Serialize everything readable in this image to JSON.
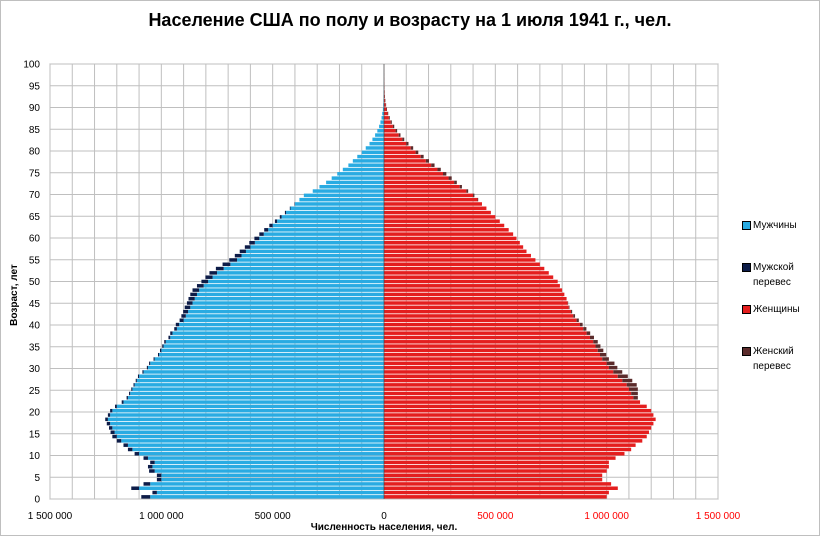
{
  "chart_data": {
    "type": "bar",
    "orientation": "horizontal",
    "title": "Население США по полу и возрасту на 1 июля 1941 г., чел.",
    "xlabel": "Численность  населения, чел.",
    "ylabel": "Возраст, лет",
    "xlim": [
      -1500000,
      1500000
    ],
    "ylim": [
      0,
      100
    ],
    "x_ticks": [
      {
        "value": -1500000,
        "label": "1 500 000"
      },
      {
        "value": -1000000,
        "label": "1 000 000"
      },
      {
        "value": -500000,
        "label": "500 000"
      },
      {
        "value": 0,
        "label": "0"
      },
      {
        "value": 500000,
        "label": "500 000"
      },
      {
        "value": 1000000,
        "label": "1 000 000"
      },
      {
        "value": 1500000,
        "label": "1 500 000"
      }
    ],
    "y_ticks": [
      "0",
      "5",
      "10",
      "15",
      "20",
      "25",
      "30",
      "35",
      "40",
      "45",
      "50",
      "55",
      "60",
      "65",
      "70",
      "75",
      "80",
      "85",
      "90",
      "95",
      "100"
    ],
    "grid": true,
    "legend_position": "right",
    "ages": [
      0,
      1,
      2,
      3,
      4,
      5,
      6,
      7,
      8,
      9,
      10,
      11,
      12,
      13,
      14,
      15,
      16,
      17,
      18,
      19,
      20,
      21,
      22,
      23,
      24,
      25,
      26,
      27,
      28,
      29,
      30,
      31,
      32,
      33,
      34,
      35,
      36,
      37,
      38,
      39,
      40,
      41,
      42,
      43,
      44,
      45,
      46,
      47,
      48,
      49,
      50,
      51,
      52,
      53,
      54,
      55,
      56,
      57,
      58,
      59,
      60,
      61,
      62,
      63,
      64,
      65,
      66,
      67,
      68,
      69,
      70,
      71,
      72,
      73,
      74,
      75,
      76,
      77,
      78,
      79,
      80,
      81,
      82,
      83,
      84,
      85,
      86,
      87,
      88,
      89,
      90,
      91,
      92,
      93,
      94,
      95,
      96,
      97,
      98,
      99,
      100
    ],
    "series": [
      {
        "name": "Мужчины",
        "color": "#29ABE2",
        "side": "left",
        "values": [
          1050000,
          1020000,
          1100000,
          1050000,
          1000000,
          1000000,
          1030000,
          1040000,
          1030000,
          1060000,
          1100000,
          1130000,
          1150000,
          1180000,
          1200000,
          1210000,
          1220000,
          1230000,
          1240000,
          1230000,
          1220000,
          1200000,
          1170000,
          1150000,
          1140000,
          1130000,
          1120000,
          1110000,
          1100000,
          1080000,
          1060000,
          1050000,
          1030000,
          1010000,
          1000000,
          990000,
          980000,
          960000,
          950000,
          930000,
          920000,
          900000,
          890000,
          880000,
          870000,
          860000,
          850000,
          840000,
          830000,
          810000,
          790000,
          770000,
          750000,
          720000,
          690000,
          660000,
          640000,
          620000,
          600000,
          580000,
          560000,
          540000,
          520000,
          500000,
          480000,
          460000,
          440000,
          420000,
          400000,
          380000,
          360000,
          320000,
          290000,
          260000,
          235000,
          210000,
          185000,
          160000,
          140000,
          120000,
          100000,
          82000,
          65000,
          52000,
          40000,
          30000,
          22000,
          16000,
          11000,
          8000,
          5000,
          3500,
          2500,
          1600,
          1100,
          700,
          400,
          250,
          150,
          80,
          40
        ]
      },
      {
        "name": "Мужской перевес",
        "color": "#0D1C48",
        "side": "left",
        "values": [
          40000,
          20000,
          35000,
          30000,
          20000,
          20000,
          25000,
          20000,
          20000,
          20000,
          20000,
          20000,
          20000,
          20000,
          20000,
          18000,
          15000,
          15000,
          12000,
          10000,
          10000,
          8000,
          8000,
          6000,
          5000,
          5000,
          5000,
          5000,
          5000,
          5000,
          5000,
          5000,
          5000,
          5000,
          6000,
          6000,
          7000,
          8000,
          10000,
          12000,
          15000,
          18000,
          20000,
          22000,
          25000,
          25000,
          28000,
          30000,
          30000,
          30000,
          30000,
          32000,
          34000,
          35000,
          35000,
          35000,
          30000,
          28000,
          25000,
          25000,
          22000,
          20000,
          18000,
          15000,
          10000,
          8000,
          5000,
          3000,
          2000,
          0,
          0,
          0,
          0,
          0,
          0,
          0,
          0,
          0,
          0,
          0,
          0,
          0,
          0,
          0,
          0,
          0,
          0,
          0,
          0,
          0,
          0,
          0,
          0,
          0,
          0,
          0,
          0,
          0,
          0,
          0,
          0
        ]
      },
      {
        "name": "Женщины",
        "color": "#E41E1E",
        "side": "right",
        "values": [
          1000000,
          1010000,
          1050000,
          1020000,
          980000,
          980000,
          1000000,
          1010000,
          1010000,
          1040000,
          1080000,
          1110000,
          1130000,
          1160000,
          1180000,
          1190000,
          1200000,
          1210000,
          1220000,
          1210000,
          1200000,
          1180000,
          1150000,
          1120000,
          1110000,
          1100000,
          1090000,
          1070000,
          1050000,
          1030000,
          1010000,
          1000000,
          980000,
          970000,
          960000,
          950000,
          940000,
          925000,
          910000,
          895000,
          880000,
          865000,
          850000,
          840000,
          830000,
          825000,
          820000,
          810000,
          800000,
          790000,
          780000,
          760000,
          740000,
          720000,
          700000,
          680000,
          660000,
          640000,
          625000,
          610000,
          595000,
          580000,
          560000,
          540000,
          520000,
          500000,
          480000,
          460000,
          440000,
          420000,
          400000,
          370000,
          340000,
          315000,
          290000,
          265000,
          240000,
          212000,
          188000,
          165000,
          142000,
          120000,
          100000,
          82000,
          66000,
          52000,
          40000,
          30000,
          22000,
          16000,
          11000,
          7500,
          5000,
          3500,
          2300,
          1500,
          900,
          550,
          320,
          180,
          90
        ]
      },
      {
        "name": "Женский перевес",
        "color": "#5B2B2B",
        "side": "right",
        "values": [
          0,
          0,
          0,
          0,
          0,
          0,
          0,
          0,
          0,
          0,
          0,
          0,
          0,
          0,
          0,
          0,
          0,
          0,
          0,
          0,
          0,
          0,
          0,
          20000,
          30000,
          40000,
          45000,
          45000,
          45000,
          40000,
          38000,
          35000,
          30000,
          28000,
          25000,
          22000,
          20000,
          18000,
          16000,
          14000,
          12000,
          10000,
          8000,
          5000,
          3000,
          2000,
          0,
          0,
          0,
          0,
          0,
          0,
          0,
          0,
          0,
          0,
          0,
          0,
          0,
          0,
          0,
          0,
          0,
          0,
          0,
          0,
          0,
          0,
          0,
          3000,
          6000,
          8000,
          10000,
          12000,
          14000,
          15000,
          15000,
          15000,
          14000,
          13000,
          12000,
          11000,
          10000,
          9000,
          8000,
          7000,
          6000,
          5000,
          4000,
          3000,
          2500,
          2000,
          1500,
          1000,
          700,
          500,
          300,
          200,
          100,
          50,
          30
        ]
      }
    ]
  },
  "legend": [
    {
      "label": "Мужчины",
      "color": "#29ABE2"
    },
    {
      "label": "Мужской перевес",
      "color": "#0D1C48"
    },
    {
      "label": "Женщины",
      "color": "#E41E1E"
    },
    {
      "label": "Женский перевес",
      "color": "#5B2B2B"
    }
  ],
  "axis_label_colors": {
    "left": "#000000",
    "right": "#FF0000"
  }
}
